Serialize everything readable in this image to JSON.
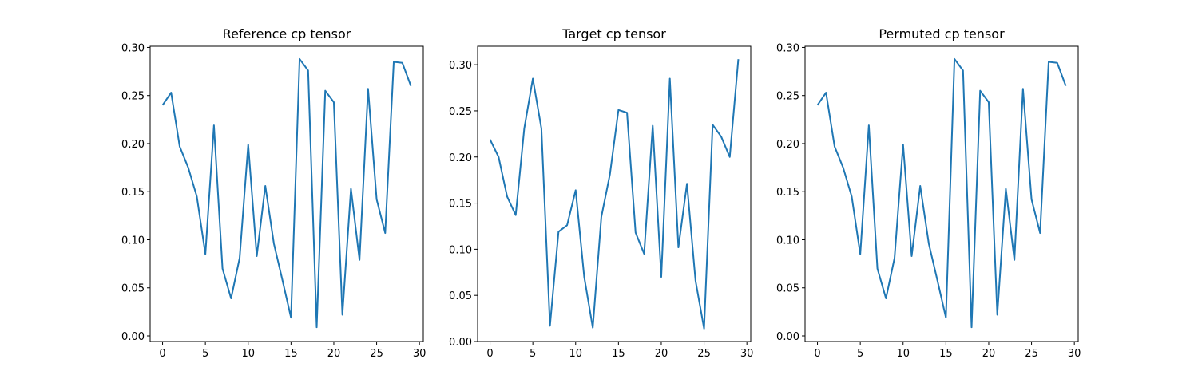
{
  "colors": {
    "line": "#1f77b4",
    "axes": "#000000",
    "background": "#ffffff"
  },
  "chart_data": [
    {
      "type": "line",
      "title": "Reference cp tensor",
      "xlabel": "",
      "ylabel": "",
      "xlim": [
        -1.45,
        30.45
      ],
      "ylim": [
        -0.0058,
        0.3012
      ],
      "xticks": [
        0,
        5,
        10,
        15,
        20,
        25,
        30
      ],
      "yticks": [
        0.0,
        0.05,
        0.1,
        0.15,
        0.2,
        0.25,
        0.3
      ],
      "ytick_labels": [
        "0.00",
        "0.05",
        "0.10",
        "0.15",
        "0.20",
        "0.25",
        "0.30"
      ],
      "grid": false,
      "x": [
        0,
        1,
        2,
        3,
        4,
        5,
        6,
        7,
        8,
        9,
        10,
        11,
        12,
        13,
        14,
        15,
        16,
        17,
        18,
        19,
        20,
        21,
        22,
        23,
        24,
        25,
        26,
        27,
        28,
        29
      ],
      "series": [
        {
          "values": [
            0.24,
            0.253,
            0.197,
            0.175,
            0.145,
            0.085,
            0.219,
            0.07,
            0.039,
            0.081,
            0.199,
            0.083,
            0.156,
            0.096,
            0.058,
            0.019,
            0.288,
            0.276,
            0.009,
            0.255,
            0.243,
            0.022,
            0.153,
            0.079,
            0.257,
            0.142,
            0.107,
            0.285,
            0.284,
            0.26
          ]
        }
      ]
    },
    {
      "type": "line",
      "title": "Target cp tensor",
      "xlabel": "",
      "ylabel": "",
      "xlim": [
        -1.45,
        30.45
      ],
      "ylim": [
        0.0,
        0.32
      ],
      "xticks": [
        0,
        5,
        10,
        15,
        20,
        25,
        30
      ],
      "yticks": [
        0.0,
        0.05,
        0.1,
        0.15,
        0.2,
        0.25,
        0.3
      ],
      "ytick_labels": [
        "0.00",
        "0.05",
        "0.10",
        "0.15",
        "0.20",
        "0.25",
        "0.30"
      ],
      "grid": false,
      "x": [
        0,
        1,
        2,
        3,
        4,
        5,
        6,
        7,
        8,
        9,
        10,
        11,
        12,
        13,
        14,
        15,
        16,
        17,
        18,
        19,
        20,
        21,
        22,
        23,
        24,
        25,
        26,
        27,
        28,
        29
      ],
      "series": [
        {
          "values": [
            0.219,
            0.2,
            0.157,
            0.137,
            0.231,
            0.285,
            0.231,
            0.017,
            0.119,
            0.126,
            0.164,
            0.07,
            0.015,
            0.135,
            0.181,
            0.251,
            0.248,
            0.118,
            0.095,
            0.234,
            0.07,
            0.285,
            0.102,
            0.171,
            0.066,
            0.014,
            0.235,
            0.222,
            0.2,
            0.306
          ]
        }
      ]
    },
    {
      "type": "line",
      "title": "Permuted cp tensor",
      "xlabel": "",
      "ylabel": "",
      "xlim": [
        -1.45,
        30.45
      ],
      "ylim": [
        -0.0058,
        0.3012
      ],
      "xticks": [
        0,
        5,
        10,
        15,
        20,
        25,
        30
      ],
      "yticks": [
        0.0,
        0.05,
        0.1,
        0.15,
        0.2,
        0.25,
        0.3
      ],
      "ytick_labels": [
        "0.00",
        "0.05",
        "0.10",
        "0.15",
        "0.20",
        "0.25",
        "0.30"
      ],
      "grid": false,
      "x": [
        0,
        1,
        2,
        3,
        4,
        5,
        6,
        7,
        8,
        9,
        10,
        11,
        12,
        13,
        14,
        15,
        16,
        17,
        18,
        19,
        20,
        21,
        22,
        23,
        24,
        25,
        26,
        27,
        28,
        29
      ],
      "series": [
        {
          "values": [
            0.24,
            0.253,
            0.197,
            0.175,
            0.145,
            0.085,
            0.219,
            0.07,
            0.039,
            0.081,
            0.199,
            0.083,
            0.156,
            0.096,
            0.058,
            0.019,
            0.288,
            0.276,
            0.009,
            0.255,
            0.243,
            0.022,
            0.153,
            0.079,
            0.257,
            0.142,
            0.107,
            0.285,
            0.284,
            0.26
          ]
        }
      ]
    }
  ]
}
